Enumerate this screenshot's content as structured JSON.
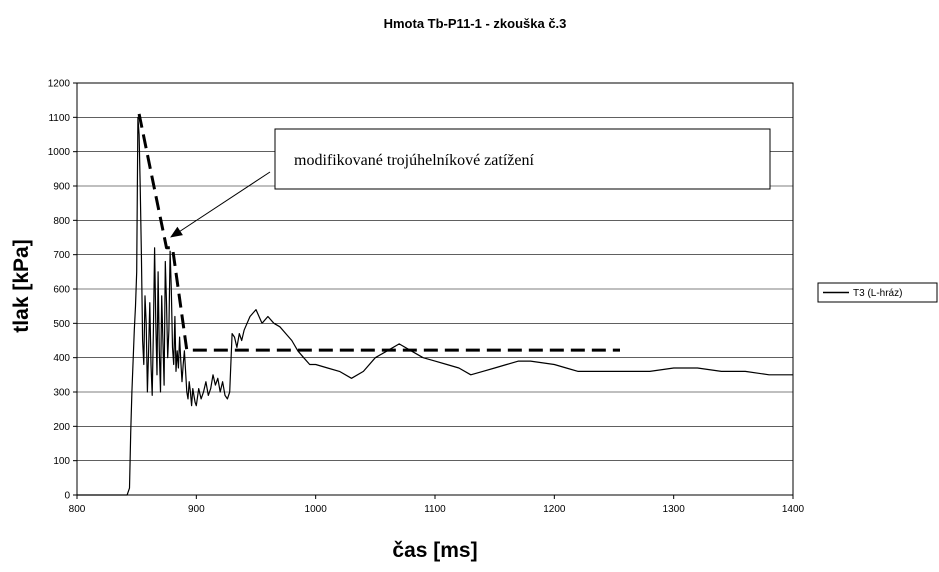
{
  "chart_data": {
    "type": "line",
    "title": "Hmota Tb-P11-1 - zkouška č.3",
    "xlabel": "čas [ms]",
    "ylabel": "tlak [kPa]",
    "xlim": [
      800,
      1400
    ],
    "ylim": [
      0,
      1200
    ],
    "xticks": [
      800,
      900,
      1000,
      1100,
      1200,
      1300,
      1400
    ],
    "yticks": [
      0,
      100,
      200,
      300,
      400,
      500,
      600,
      700,
      800,
      900,
      1000,
      1100,
      1200
    ],
    "grid": "horizontal",
    "legend_position": "right",
    "series": [
      {
        "name": "T3 (L-hráz)",
        "color": "#000000",
        "style": "solid",
        "x": [
          800,
          842,
          844,
          845,
          846,
          848,
          849,
          850,
          851,
          852,
          853,
          854,
          855,
          856,
          857,
          858,
          859,
          860,
          861,
          862,
          863,
          864,
          865,
          866,
          867,
          868,
          869,
          870,
          871,
          872,
          873,
          874,
          875,
          876,
          877,
          878,
          879,
          880,
          881,
          882,
          883,
          884,
          885,
          886,
          887,
          888,
          889,
          890,
          891,
          892,
          893,
          894,
          895,
          896,
          897,
          898,
          899,
          900,
          902,
          904,
          906,
          908,
          910,
          912,
          914,
          916,
          918,
          920,
          922,
          924,
          926,
          928,
          930,
          932,
          934,
          936,
          938,
          940,
          945,
          950,
          955,
          960,
          965,
          970,
          975,
          980,
          985,
          990,
          995,
          1000,
          1010,
          1020,
          1030,
          1040,
          1050,
          1060,
          1070,
          1080,
          1090,
          1100,
          1110,
          1120,
          1130,
          1140,
          1150,
          1160,
          1170,
          1180,
          1200,
          1210,
          1220,
          1240,
          1260,
          1280,
          1300,
          1320,
          1340,
          1360,
          1380,
          1400
        ],
        "y": [
          0,
          0,
          20,
          180,
          300,
          480,
          550,
          650,
          1100,
          1050,
          900,
          700,
          450,
          380,
          580,
          500,
          300,
          420,
          560,
          380,
          290,
          480,
          720,
          500,
          350,
          650,
          420,
          300,
          580,
          450,
          320,
          680,
          560,
          400,
          480,
          710,
          600,
          430,
          380,
          520,
          360,
          420,
          370,
          460,
          390,
          330,
          380,
          420,
          360,
          300,
          280,
          330,
          300,
          260,
          310,
          290,
          270,
          260,
          310,
          280,
          300,
          330,
          290,
          310,
          350,
          320,
          340,
          300,
          330,
          290,
          280,
          300,
          470,
          460,
          430,
          470,
          450,
          480,
          520,
          540,
          500,
          520,
          500,
          490,
          470,
          450,
          420,
          400,
          380,
          380,
          370,
          360,
          340,
          360,
          400,
          420,
          440,
          420,
          400,
          390,
          380,
          370,
          350,
          360,
          370,
          380,
          390,
          390,
          380,
          370,
          360,
          360,
          360,
          360,
          370,
          370,
          360,
          360,
          350,
          350
        ]
      },
      {
        "name": "modifikované trojúhelníkové zatížení",
        "color": "#000000",
        "style": "dashed",
        "x": [
          852,
          875,
          880,
          892,
          1255
        ],
        "y": [
          1110,
          720,
          720,
          422,
          422
        ]
      }
    ],
    "annotations": [
      {
        "text": "modifikované trojúhelníkové zatížení",
        "arrow_to": {
          "x": 878,
          "y": 750
        }
      }
    ]
  }
}
